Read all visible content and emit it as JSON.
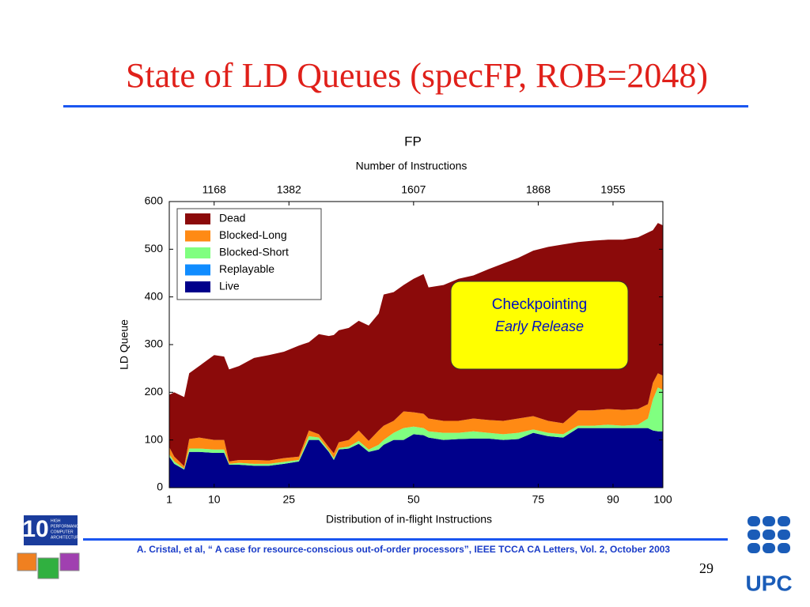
{
  "slide": {
    "title": "State of LD Queues (specFP, ROB=2048)",
    "callout": [
      "Checkpointing",
      "Early Release"
    ],
    "citation": "A. Cristal, et al, “ A case for resource-conscious out-of-order processors”, IEEE TCCA CA Letters, Vol. 2, October 2003",
    "page_number": "29",
    "logo_left": [
      "HIGH",
      "PERFORMANCE",
      "COMPUTER",
      "ARCHITECTURE"
    ],
    "logo_right": "UPC"
  },
  "chart_data": {
    "type": "stacked_area",
    "title": "FP",
    "x_label": "Distribution of in-flight Instructions",
    "x2_label": "Number of Instructions",
    "y_label": "LD Queue",
    "x": [
      1,
      2,
      4,
      5,
      7,
      10,
      12,
      13,
      15,
      18,
      21,
      24,
      27,
      29,
      31,
      33,
      34,
      35,
      37,
      39,
      41,
      43,
      44,
      46,
      48,
      50,
      52,
      53,
      56,
      59,
      62,
      65,
      68,
      71,
      74,
      77,
      80,
      83,
      86,
      89,
      92,
      95,
      97,
      98,
      99,
      100
    ],
    "series": [
      {
        "name": "Live",
        "color": "#00008b",
        "values": [
          65,
          50,
          38,
          75,
          75,
          73,
          73,
          48,
          48,
          46,
          46,
          50,
          55,
          100,
          100,
          75,
          58,
          80,
          82,
          92,
          75,
          80,
          90,
          100,
          100,
          112,
          110,
          105,
          100,
          102,
          103,
          103,
          100,
          102,
          115,
          108,
          105,
          125,
          125,
          125,
          125,
          125,
          125,
          120,
          118,
          118
        ]
      },
      {
        "name": "Replayable",
        "color": "#108cff",
        "values": [
          0,
          0,
          0,
          0,
          0,
          0,
          0,
          0,
          0,
          0,
          0,
          0,
          0,
          0,
          0,
          0,
          0,
          0,
          0,
          0,
          0,
          0,
          0,
          0,
          0,
          0,
          0,
          0,
          0,
          0,
          0,
          0,
          0,
          0,
          0,
          0,
          0,
          0,
          0,
          0,
          0,
          0,
          0,
          0,
          0,
          0
        ]
      },
      {
        "name": "Blocked-Short",
        "color": "#80ff80",
        "values": [
          5,
          5,
          2,
          7,
          7,
          7,
          7,
          2,
          4,
          4,
          4,
          4,
          3,
          8,
          5,
          3,
          4,
          3,
          4,
          6,
          5,
          10,
          10,
          15,
          25,
          16,
          15,
          13,
          15,
          13,
          15,
          12,
          12,
          13,
          7,
          7,
          7,
          5,
          5,
          7,
          5,
          7,
          20,
          65,
          92,
          87
        ]
      },
      {
        "name": "Blocked-Long",
        "color": "#ff8a14",
        "values": [
          15,
          10,
          5,
          20,
          23,
          20,
          20,
          5,
          6,
          8,
          7,
          8,
          7,
          12,
          7,
          7,
          10,
          12,
          14,
          22,
          18,
          30,
          30,
          25,
          35,
          30,
          30,
          27,
          25,
          25,
          27,
          27,
          28,
          30,
          28,
          25,
          23,
          32,
          32,
          33,
          33,
          33,
          30,
          35,
          30,
          30
        ]
      },
      {
        "name": "Dead",
        "color": "#8b0a0a",
        "values": [
          110,
          135,
          145,
          138,
          150,
          178,
          175,
          193,
          197,
          214,
          221,
          223,
          233,
          185,
          210,
          233,
          248,
          235,
          235,
          230,
          242,
          245,
          275,
          270,
          265,
          280,
          293,
          275,
          285,
          298,
          300,
          316,
          330,
          337,
          347,
          365,
          375,
          353,
          356,
          355,
          357,
          360,
          360,
          320,
          315,
          315
        ]
      }
    ],
    "xlim": [
      1,
      100
    ],
    "xticks": [
      1,
      10,
      25,
      50,
      75,
      90,
      100
    ],
    "x2ticks": [
      {
        "value": 10,
        "label": "1168"
      },
      {
        "value": 25,
        "label": "1382"
      },
      {
        "value": 50,
        "label": "1607"
      },
      {
        "value": 75,
        "label": "1868"
      },
      {
        "value": 90,
        "label": "1955"
      }
    ],
    "ylim": [
      0,
      600
    ],
    "yticks": [
      0,
      100,
      200,
      300,
      400,
      500,
      600
    ],
    "legend": "upper left"
  }
}
